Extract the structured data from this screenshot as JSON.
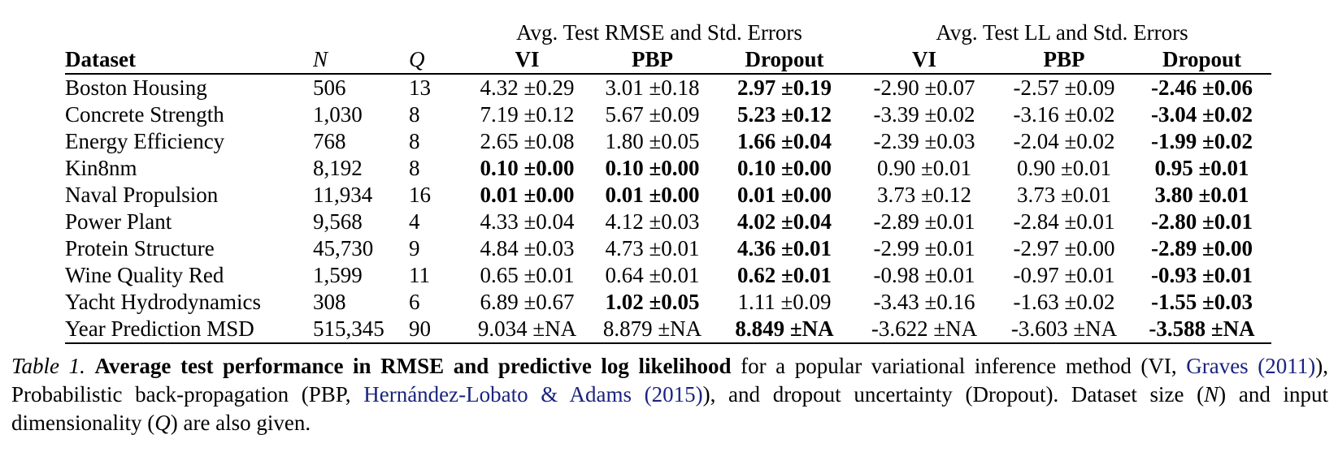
{
  "table": {
    "group_headers": {
      "rmse": "Avg. Test RMSE and Std. Errors",
      "ll": "Avg. Test LL and Std. Errors"
    },
    "columns": [
      "Dataset",
      "N",
      "Q",
      "VI",
      "PBP",
      "Dropout",
      "VI",
      "PBP",
      "Dropout"
    ],
    "rows": [
      {
        "dataset": "Boston Housing",
        "n": "506",
        "q": "13",
        "rmse": [
          {
            "v": "4.32 ±0.29",
            "b": false
          },
          {
            "v": "3.01 ±0.18",
            "b": false
          },
          {
            "v": "2.97 ±0.19",
            "b": true
          }
        ],
        "ll": [
          {
            "v": "-2.90 ±0.07",
            "b": false
          },
          {
            "v": "-2.57 ±0.09",
            "b": false
          },
          {
            "v": "-2.46 ±0.06",
            "b": true
          }
        ]
      },
      {
        "dataset": "Concrete Strength",
        "n": "1,030",
        "q": "8",
        "rmse": [
          {
            "v": "7.19 ±0.12",
            "b": false
          },
          {
            "v": "5.67 ±0.09",
            "b": false
          },
          {
            "v": "5.23 ±0.12",
            "b": true
          }
        ],
        "ll": [
          {
            "v": "-3.39 ±0.02",
            "b": false
          },
          {
            "v": "-3.16 ±0.02",
            "b": false
          },
          {
            "v": "-3.04 ±0.02",
            "b": true
          }
        ]
      },
      {
        "dataset": "Energy Efficiency",
        "n": "768",
        "q": "8",
        "rmse": [
          {
            "v": "2.65 ±0.08",
            "b": false
          },
          {
            "v": "1.80 ±0.05",
            "b": false
          },
          {
            "v": "1.66 ±0.04",
            "b": true
          }
        ],
        "ll": [
          {
            "v": "-2.39 ±0.03",
            "b": false
          },
          {
            "v": "-2.04 ±0.02",
            "b": false
          },
          {
            "v": "-1.99 ±0.02",
            "b": true
          }
        ]
      },
      {
        "dataset": "Kin8nm",
        "n": "8,192",
        "q": "8",
        "rmse": [
          {
            "v": "0.10 ±0.00",
            "b": true
          },
          {
            "v": "0.10 ±0.00",
            "b": true
          },
          {
            "v": "0.10 ±0.00",
            "b": true
          }
        ],
        "ll": [
          {
            "v": "0.90 ±0.01",
            "b": false
          },
          {
            "v": "0.90 ±0.01",
            "b": false
          },
          {
            "v": "0.95 ±0.01",
            "b": true
          }
        ]
      },
      {
        "dataset": "Naval Propulsion",
        "n": "11,934",
        "q": "16",
        "rmse": [
          {
            "v": "0.01 ±0.00",
            "b": true
          },
          {
            "v": "0.01 ±0.00",
            "b": true
          },
          {
            "v": "0.01 ±0.00",
            "b": true
          }
        ],
        "ll": [
          {
            "v": "3.73 ±0.12",
            "b": false
          },
          {
            "v": "3.73 ±0.01",
            "b": false
          },
          {
            "v": "3.80 ±0.01",
            "b": true
          }
        ]
      },
      {
        "dataset": "Power Plant",
        "n": "9,568",
        "q": "4",
        "rmse": [
          {
            "v": "4.33 ±0.04",
            "b": false
          },
          {
            "v": "4.12 ±0.03",
            "b": false
          },
          {
            "v": "4.02 ±0.04",
            "b": true
          }
        ],
        "ll": [
          {
            "v": "-2.89 ±0.01",
            "b": false
          },
          {
            "v": "-2.84 ±0.01",
            "b": false
          },
          {
            "v": "-2.80 ±0.01",
            "b": true
          }
        ]
      },
      {
        "dataset": "Protein Structure",
        "n": "45,730",
        "q": "9",
        "rmse": [
          {
            "v": "4.84 ±0.03",
            "b": false
          },
          {
            "v": "4.73 ±0.01",
            "b": false
          },
          {
            "v": "4.36 ±0.01",
            "b": true
          }
        ],
        "ll": [
          {
            "v": "-2.99 ±0.01",
            "b": false
          },
          {
            "v": "-2.97 ±0.00",
            "b": false
          },
          {
            "v": "-2.89 ±0.00",
            "b": true
          }
        ]
      },
      {
        "dataset": "Wine Quality Red",
        "n": "1,599",
        "q": "11",
        "rmse": [
          {
            "v": "0.65 ±0.01",
            "b": false
          },
          {
            "v": "0.64 ±0.01",
            "b": false
          },
          {
            "v": "0.62 ±0.01",
            "b": true
          }
        ],
        "ll": [
          {
            "v": "-0.98 ±0.01",
            "b": false
          },
          {
            "v": "-0.97 ±0.01",
            "b": false
          },
          {
            "v": "-0.93 ±0.01",
            "b": true
          }
        ]
      },
      {
        "dataset": "Yacht Hydrodynamics",
        "n": "308",
        "q": "6",
        "rmse": [
          {
            "v": "6.89 ±0.67",
            "b": false
          },
          {
            "v": "1.02 ±0.05",
            "b": true
          },
          {
            "v": "1.11 ±0.09",
            "b": false
          }
        ],
        "ll": [
          {
            "v": "-3.43 ±0.16",
            "b": false
          },
          {
            "v": "-1.63 ±0.02",
            "b": false
          },
          {
            "v": "-1.55 ±0.03",
            "b": true
          }
        ]
      },
      {
        "dataset": "Year Prediction MSD",
        "n": "515,345",
        "q": "90",
        "rmse": [
          {
            "v": "9.034 ±NA",
            "b": false
          },
          {
            "v": "8.879 ±NA",
            "b": false
          },
          {
            "v": "8.849 ±NA",
            "b": true
          }
        ],
        "ll": [
          {
            "v": "-3.622 ±NA",
            "b": false
          },
          {
            "v": "-3.603 ±NA",
            "b": false
          },
          {
            "v": "-3.588 ±NA",
            "b": true
          }
        ]
      }
    ]
  },
  "caption": {
    "label": "Table 1.",
    "bold": "Average test performance in RMSE and predictive log likelihood",
    "t1": " for a popular variational inference method (VI, ",
    "cite1a": "Graves",
    "t2": " ",
    "cite1b": "(2011)",
    "t3": "), Probabilistic back-propagation (PBP, ",
    "cite2": "Hernández-Lobato & Adams (2015)",
    "t4": "), and dropout uncertainty (Dropout). Dataset size (",
    "n": "N",
    "t5": ") and input dimensionality (",
    "q": "Q",
    "t6": ") are also given."
  }
}
